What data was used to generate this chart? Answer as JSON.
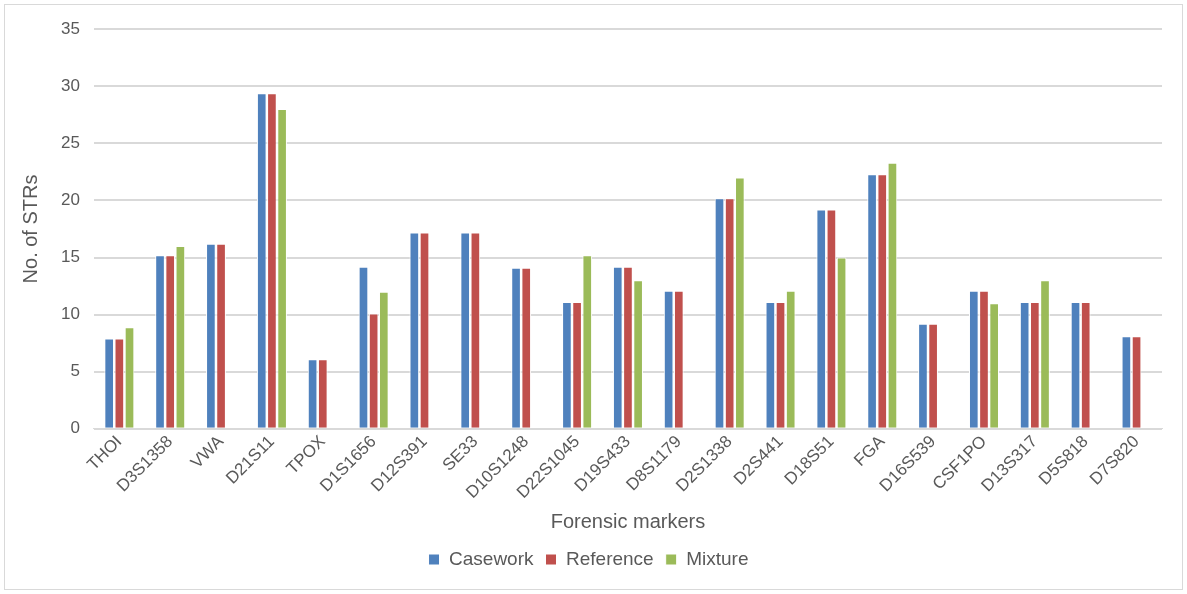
{
  "chart_data": {
    "type": "bar",
    "xlabel": "Forensic markers",
    "ylabel": "No. of STRs",
    "categories": [
      "THOI",
      "D3S1358",
      "VWA",
      "D21S11",
      "TPOX",
      "D1S1656",
      "D12S391",
      "SE33",
      "D10S1248",
      "D22S1045",
      "D19S433",
      "D8S1179",
      "D2S1338",
      "D2S441",
      "D18S51",
      "FGA",
      "D16S539",
      "CSF1PO",
      "D13S317",
      "D5S818",
      "D7S820"
    ],
    "series": [
      {
        "name": "Casework",
        "color": "#4f81bd",
        "values": [
          7.9,
          15.2,
          16.2,
          29.4,
          6.1,
          14.2,
          17.2,
          17.2,
          14.1,
          11.1,
          14.2,
          12.1,
          20.2,
          11.1,
          19.2,
          22.3,
          9.2,
          12.1,
          11.1,
          11.1,
          8.1
        ]
      },
      {
        "name": "Reference",
        "color": "#c0504d",
        "values": [
          7.9,
          15.2,
          16.2,
          29.4,
          6.1,
          10.1,
          17.2,
          17.2,
          14.1,
          11.1,
          14.2,
          12.1,
          20.2,
          11.1,
          19.2,
          22.3,
          9.2,
          12.1,
          11.1,
          11.1,
          8.1
        ]
      },
      {
        "name": "Mixture",
        "color": "#9bbb59",
        "values": [
          8.9,
          16.0,
          null,
          28.0,
          null,
          12.0,
          null,
          null,
          null,
          15.2,
          13.0,
          null,
          22.0,
          12.1,
          15.0,
          23.3,
          null,
          11.0,
          13.0,
          null,
          null
        ]
      }
    ],
    "ylim": [
      0,
      35
    ],
    "yticks": [
      0,
      5,
      10,
      15,
      20,
      25,
      30,
      35
    ],
    "grid": "y",
    "legend": "bottom"
  }
}
